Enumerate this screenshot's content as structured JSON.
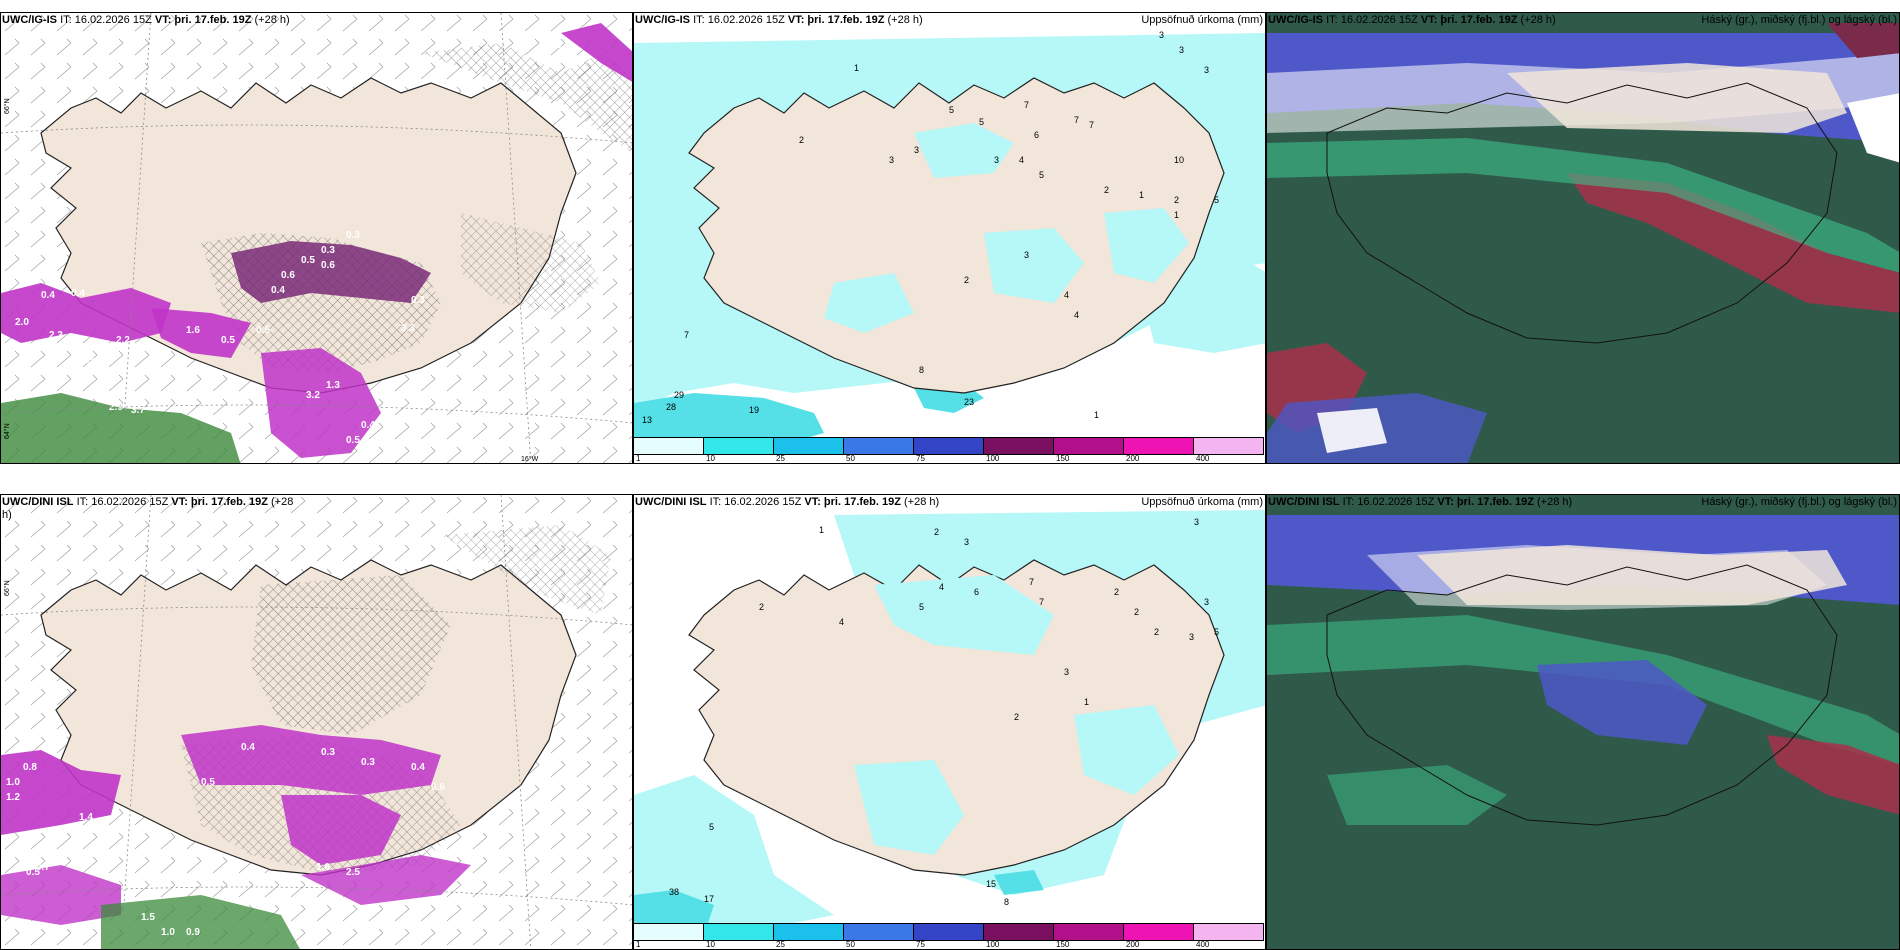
{
  "panels": {
    "tl": {
      "model": "UWC/IG-IS",
      "it": "IT: 16.02.2026 15Z",
      "vt": "VT: þri. 17.feb. 19Z",
      "lead": "(+28 h)",
      "right": ""
    },
    "tm": {
      "model": "UWC/IG-IS",
      "it": "IT: 16.02.2026 15Z",
      "vt": "VT: þri. 17.feb. 19Z",
      "lead": "(+28 h)",
      "right": "Uppsöfnuð úrkoma (mm)"
    },
    "tr": {
      "model": "UWC/IG-IS",
      "it": "IT: 16.02.2026 15Z",
      "vt": "VT: þri. 17.feb. 19Z",
      "lead": "(+28 h)",
      "right": "Háský (gr.), miðský (fj.bl.) og lágský (bl.)"
    },
    "bl": {
      "model": "UWC/DINI ISL",
      "it": "IT: 16.02.2026 15Z",
      "vt": "VT: þri. 17.feb. 19Z",
      "lead": "(+28",
      "lead2": "h)",
      "right": ""
    },
    "bm": {
      "model": "UWC/DINI ISL",
      "it": "IT: 16.02.2026 15Z",
      "vt": "VT: þri. 17.feb. 19Z",
      "lead": "(+28 h)",
      "right": "Uppsöfnuð úrkoma (mm)"
    },
    "br": {
      "model": "UWC/DINI ISL",
      "it": "IT: 16.02.2026 15Z",
      "vt": "VT: þri. 17.feb. 19Z",
      "lead": "(+28 h)",
      "right": "Háský (gr.), miðský (fj.bl.) og lágský (bl.)"
    }
  },
  "axis_labels": {
    "lat66": "66°N",
    "lat64": "64°N",
    "lon20": "20°W",
    "lon16": "16°W"
  },
  "legend": {
    "ticks": [
      "1",
      "10",
      "25",
      "50",
      "75",
      "100",
      "150",
      "200",
      "400"
    ],
    "colors": [
      "#e6fdfd",
      "#33e6ea",
      "#1bc1ea",
      "#3a78e8",
      "#3344c6",
      "#7a1060",
      "#b0108a",
      "#ee14b4",
      "#f4b4f0"
    ]
  },
  "colors": {
    "land": "#f2e6da",
    "light_precip": "#b6f7f7",
    "precip_cyan": "#55e0e8",
    "magenta": "#c034c8",
    "purple": "#7a2a78",
    "green": "#3b8a3a",
    "cloud_low": "#2f5a4a",
    "cloud_mid": "#4e58c8",
    "cloud_high": "#ffffff"
  },
  "labels": {
    "tl": [
      "0.8",
      "0.3",
      "0.4",
      "0.4",
      "0.3",
      "0.5",
      "0.6",
      "0.4",
      "2.0",
      "2.3",
      "2.2",
      "0.5",
      "0.5",
      "0.5",
      "1.3",
      "3.2",
      "0.5",
      "0.4",
      "3.0",
      "2.9",
      "3.7",
      "1.6",
      "0.3",
      "0.6",
      "3.3"
    ],
    "tm": [
      "1",
      "2",
      "3",
      "5",
      "7",
      "5",
      "6",
      "7",
      "7",
      "3",
      "3",
      "5",
      "4",
      "3",
      "2",
      "1",
      "3",
      "10",
      "2",
      "1",
      "3",
      "5",
      "7",
      "2",
      "3",
      "4",
      "29",
      "28",
      "13",
      "19",
      "23",
      "8",
      "4",
      "1"
    ],
    "bl": [
      "0.8",
      "1.0",
      "1.2",
      "1.4",
      "0.5",
      "0.4",
      "0.3",
      "0.3",
      "0.4",
      "0.6",
      "2.5",
      "1.6",
      "1.5",
      "1.0",
      "0.9",
      "0.7",
      "0.5"
    ],
    "bm": [
      "1",
      "2",
      "3",
      "2",
      "4",
      "5",
      "6",
      "7",
      "7",
      "3",
      "2",
      "2",
      "3",
      "3",
      "5",
      "4",
      "3",
      "1",
      "2",
      "38",
      "17",
      "15",
      "8",
      "5",
      "2"
    ]
  }
}
